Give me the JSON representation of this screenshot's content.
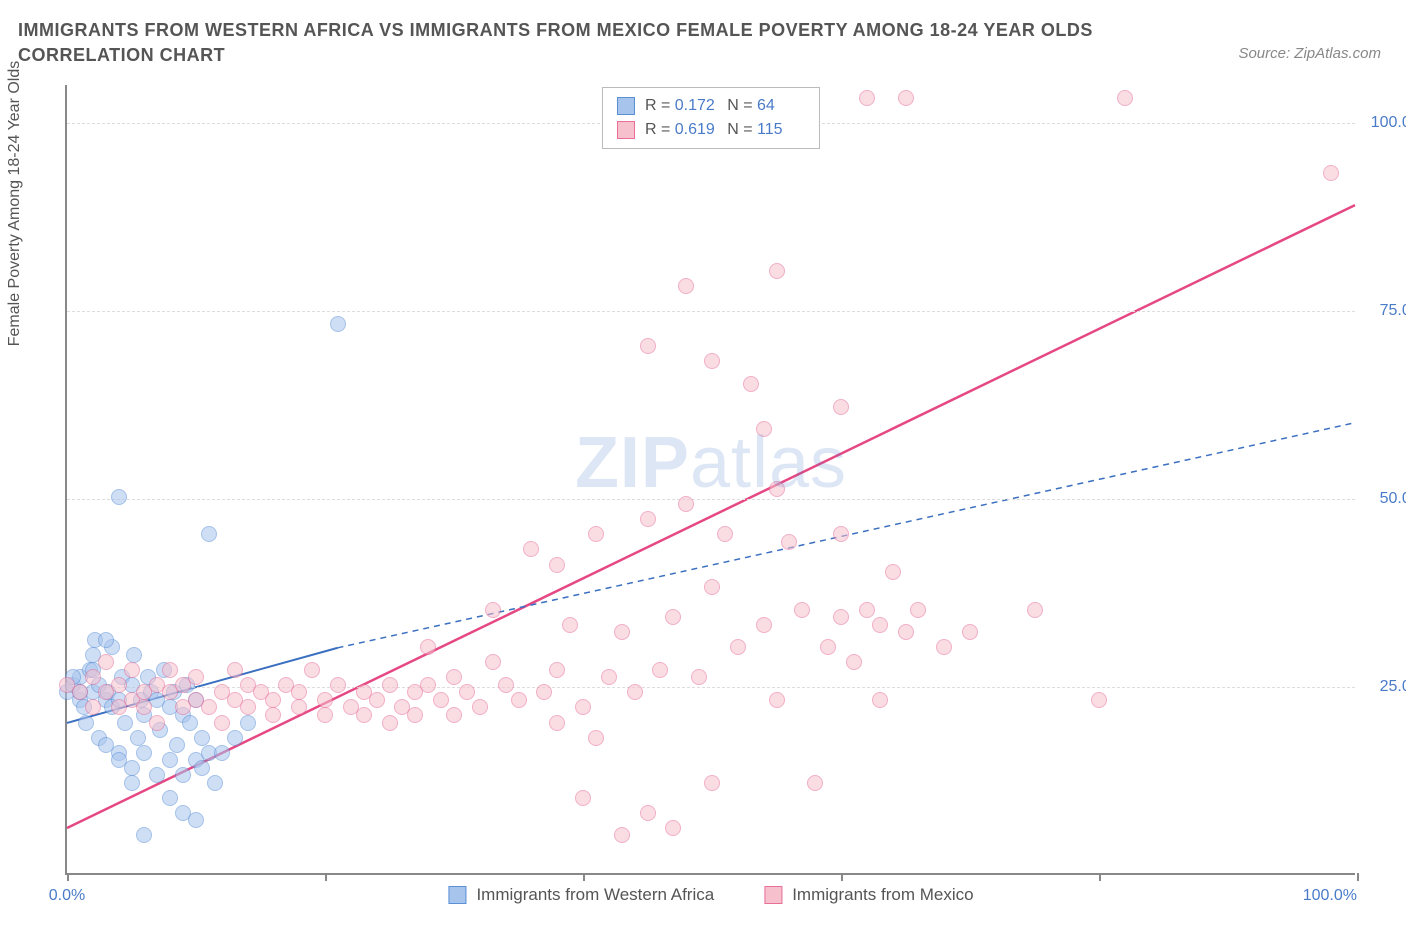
{
  "title": "IMMIGRANTS FROM WESTERN AFRICA VS IMMIGRANTS FROM MEXICO FEMALE POVERTY AMONG 18-24 YEAR OLDS CORRELATION CHART",
  "source": "Source: ZipAtlas.com",
  "y_axis_label": "Female Poverty Among 18-24 Year Olds",
  "watermark_bold": "ZIP",
  "watermark_light": "atlas",
  "chart": {
    "type": "scatter",
    "xlim": [
      0,
      100
    ],
    "ylim": [
      0,
      105
    ],
    "x_ticks": [
      0,
      20,
      40,
      60,
      80,
      100
    ],
    "x_tick_labels": {
      "0": "0.0%",
      "100": "100.0%"
    },
    "y_ticks": [
      25,
      50,
      75,
      100
    ],
    "y_tick_labels": [
      "25.0%",
      "50.0%",
      "75.0%",
      "100.0%"
    ],
    "background_color": "#ffffff",
    "grid_color": "#dddddd",
    "axis_color": "#888888",
    "marker_radius": 8,
    "marker_opacity": 0.55,
    "series": [
      {
        "name": "Immigrants from Western Africa",
        "fill_color": "#a7c4ed",
        "stroke_color": "#5b8fd6",
        "R": "0.172",
        "N": "64",
        "trend": {
          "x1": 0,
          "y1": 20,
          "x2": 21,
          "y2": 30,
          "dash_x1": 21,
          "dash_y1": 30,
          "dash_x2": 100,
          "dash_y2": 60,
          "color": "#3b6fc0",
          "width": 2
        },
        "points": [
          [
            0,
            24
          ],
          [
            0.5,
            25
          ],
          [
            1,
            23
          ],
          [
            1,
            26
          ],
          [
            1.3,
            22
          ],
          [
            1.5,
            20
          ],
          [
            1.8,
            27
          ],
          [
            2,
            24
          ],
          [
            2,
            29
          ],
          [
            2.2,
            31
          ],
          [
            2.5,
            18
          ],
          [
            2.5,
            25
          ],
          [
            3,
            23
          ],
          [
            3,
            17
          ],
          [
            3.2,
            24
          ],
          [
            3.5,
            22
          ],
          [
            3.5,
            30
          ],
          [
            4,
            16
          ],
          [
            4,
            23
          ],
          [
            4.3,
            26
          ],
          [
            4.5,
            20
          ],
          [
            5,
            25
          ],
          [
            5,
            14
          ],
          [
            5.2,
            29
          ],
          [
            5.5,
            18
          ],
          [
            5.7,
            23
          ],
          [
            6,
            16
          ],
          [
            6,
            21
          ],
          [
            6.3,
            26
          ],
          [
            6.5,
            24
          ],
          [
            4,
            50
          ],
          [
            7,
            13
          ],
          [
            7,
            23
          ],
          [
            7.2,
            19
          ],
          [
            7.5,
            27
          ],
          [
            8,
            15
          ],
          [
            8,
            22
          ],
          [
            8.3,
            24
          ],
          [
            8.5,
            17
          ],
          [
            9,
            13
          ],
          [
            9,
            21
          ],
          [
            9.3,
            25
          ],
          [
            9.5,
            20
          ],
          [
            10,
            15
          ],
          [
            10,
            23
          ],
          [
            10.5,
            18
          ],
          [
            10.5,
            14
          ],
          [
            11,
            16
          ],
          [
            11,
            45
          ],
          [
            11.5,
            12
          ],
          [
            6,
            5
          ],
          [
            9,
            8
          ],
          [
            10,
            7
          ],
          [
            8,
            10
          ],
          [
            12,
            16
          ],
          [
            13,
            18
          ],
          [
            14,
            20
          ],
          [
            4,
            15
          ],
          [
            5,
            12
          ],
          [
            3,
            31
          ],
          [
            2,
            27
          ],
          [
            1,
            24
          ],
          [
            0.5,
            26
          ],
          [
            21,
            73
          ]
        ]
      },
      {
        "name": "Immigrants from Mexico",
        "fill_color": "#f7c0cd",
        "stroke_color": "#e76f98",
        "R": "0.619",
        "N": "115",
        "trend": {
          "x1": 0,
          "y1": 6,
          "x2": 100,
          "y2": 89,
          "color": "#e54883",
          "width": 2.5
        },
        "points": [
          [
            0,
            25
          ],
          [
            1,
            24
          ],
          [
            2,
            26
          ],
          [
            2,
            22
          ],
          [
            3,
            24
          ],
          [
            3,
            28
          ],
          [
            4,
            25
          ],
          [
            4,
            22
          ],
          [
            5,
            27
          ],
          [
            5,
            23
          ],
          [
            6,
            24
          ],
          [
            6,
            22
          ],
          [
            7,
            25
          ],
          [
            7,
            20
          ],
          [
            8,
            24
          ],
          [
            8,
            27
          ],
          [
            9,
            22
          ],
          [
            9,
            25
          ],
          [
            10,
            26
          ],
          [
            10,
            23
          ],
          [
            11,
            22
          ],
          [
            12,
            24
          ],
          [
            12,
            20
          ],
          [
            13,
            23
          ],
          [
            13,
            27
          ],
          [
            14,
            22
          ],
          [
            14,
            25
          ],
          [
            15,
            24
          ],
          [
            16,
            23
          ],
          [
            16,
            21
          ],
          [
            17,
            25
          ],
          [
            18,
            22
          ],
          [
            18,
            24
          ],
          [
            19,
            27
          ],
          [
            20,
            23
          ],
          [
            20,
            21
          ],
          [
            21,
            25
          ],
          [
            22,
            22
          ],
          [
            23,
            24
          ],
          [
            23,
            21
          ],
          [
            24,
            23
          ],
          [
            25,
            25
          ],
          [
            25,
            20
          ],
          [
            26,
            22
          ],
          [
            27,
            24
          ],
          [
            27,
            21
          ],
          [
            28,
            25
          ],
          [
            29,
            23
          ],
          [
            30,
            21
          ],
          [
            30,
            26
          ],
          [
            31,
            24
          ],
          [
            32,
            22
          ],
          [
            33,
            28
          ],
          [
            34,
            25
          ],
          [
            35,
            23
          ],
          [
            36,
            43
          ],
          [
            37,
            24
          ],
          [
            38,
            27
          ],
          [
            39,
            33
          ],
          [
            40,
            22
          ],
          [
            41,
            45
          ],
          [
            42,
            26
          ],
          [
            43,
            32
          ],
          [
            44,
            24
          ],
          [
            45,
            47
          ],
          [
            45,
            70
          ],
          [
            46,
            27
          ],
          [
            47,
            34
          ],
          [
            48,
            78
          ],
          [
            49,
            26
          ],
          [
            50,
            38
          ],
          [
            50,
            68
          ],
          [
            51,
            45
          ],
          [
            52,
            30
          ],
          [
            53,
            65
          ],
          [
            54,
            33
          ],
          [
            55,
            51
          ],
          [
            55,
            80
          ],
          [
            56,
            44
          ],
          [
            57,
            35
          ],
          [
            58,
            12
          ],
          [
            59,
            30
          ],
          [
            60,
            34
          ],
          [
            60,
            45
          ],
          [
            61,
            28
          ],
          [
            62,
            35
          ],
          [
            63,
            33
          ],
          [
            64,
            40
          ],
          [
            65,
            32
          ],
          [
            51,
            103
          ],
          [
            66,
            35
          ],
          [
            68,
            30
          ],
          [
            70,
            32
          ],
          [
            57,
            103
          ],
          [
            62,
            103
          ],
          [
            65,
            103
          ],
          [
            40,
            10
          ],
          [
            45,
            8
          ],
          [
            50,
            12
          ],
          [
            43,
            5
          ],
          [
            47,
            6
          ],
          [
            75,
            35
          ],
          [
            80,
            23
          ],
          [
            82,
            103
          ],
          [
            98,
            93
          ],
          [
            60,
            62
          ],
          [
            54,
            59
          ],
          [
            48,
            49
          ],
          [
            38,
            41
          ],
          [
            33,
            35
          ],
          [
            28,
            30
          ],
          [
            41,
            18
          ],
          [
            63,
            23
          ],
          [
            38,
            20
          ],
          [
            55,
            23
          ]
        ]
      }
    ]
  },
  "bottom_legend": [
    {
      "label": "Immigrants from Western Africa",
      "fill": "#a7c4ed",
      "stroke": "#5b8fd6"
    },
    {
      "label": "Immigrants from Mexico",
      "fill": "#f7c0cd",
      "stroke": "#e76f98"
    }
  ]
}
